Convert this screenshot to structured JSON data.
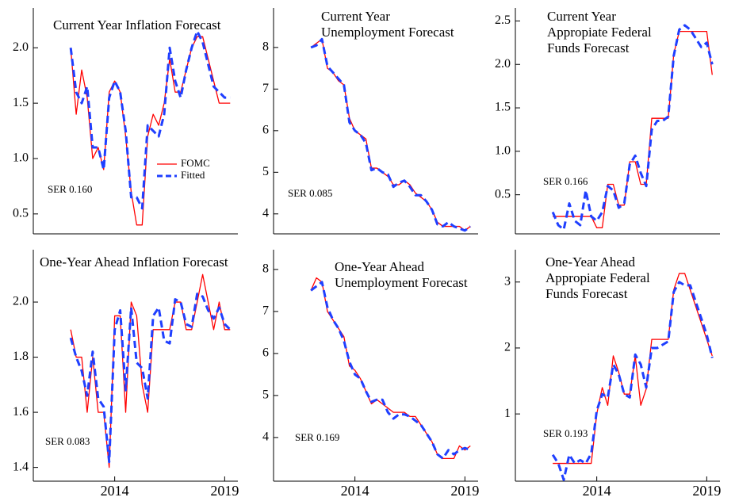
{
  "chart_data": [
    {
      "type": "line",
      "title": [
        "Current Year Inflation Forecast"
      ],
      "annotation": "SER 0.160",
      "legend": "center-right",
      "x": [
        2012,
        2012.25,
        2012.5,
        2012.75,
        2013,
        2013.25,
        2013.5,
        2013.75,
        2014,
        2014.25,
        2014.5,
        2014.75,
        2015,
        2015.25,
        2015.5,
        2015.75,
        2016,
        2016.25,
        2016.5,
        2016.75,
        2017,
        2017.25,
        2017.5,
        2017.75,
        2018,
        2018.25,
        2018.5,
        2018.75,
        2019,
        2019.25
      ],
      "xlim": [
        2010.3,
        2019.6
      ],
      "ylim": [
        0.32,
        2.36
      ],
      "yticks": [
        0.5,
        {
          "value": 1,
          "label": "1.0"
        },
        1.5,
        {
          "value": 2,
          "label": "2.0"
        }
      ],
      "series": [
        {
          "name": "FOMC",
          "color": "#ff0000",
          "values": [
            2.0,
            1.4,
            1.8,
            1.55,
            1.0,
            1.1,
            0.9,
            1.6,
            1.7,
            1.6,
            1.2,
            0.7,
            0.4,
            0.4,
            1.2,
            1.4,
            1.3,
            1.5,
            1.9,
            1.6,
            1.6,
            1.8,
            2.0,
            2.1,
            2.1,
            1.9,
            1.7,
            1.5,
            1.5,
            1.5
          ]
        },
        {
          "name": "Fitted",
          "color": "#1f3fff",
          "dashed": true,
          "values": [
            2.0,
            1.6,
            1.5,
            1.65,
            1.1,
            1.1,
            0.9,
            1.55,
            1.7,
            1.6,
            1.25,
            0.65,
            0.65,
            0.55,
            1.3,
            1.25,
            1.2,
            1.4,
            2.0,
            1.7,
            1.55,
            1.8,
            2.0,
            2.15,
            2.05,
            1.85,
            1.65,
            1.6,
            1.55,
            1.55
          ]
        }
      ]
    },
    {
      "type": "line",
      "title": [
        "Current Year",
        "Unemployment Forecast"
      ],
      "annotation": "SER 0.085",
      "x": [
        2012,
        2012.25,
        2012.5,
        2012.75,
        2013,
        2013.25,
        2013.5,
        2013.75,
        2014,
        2014.25,
        2014.5,
        2014.75,
        2015,
        2015.25,
        2015.5,
        2015.75,
        2016,
        2016.25,
        2016.5,
        2016.75,
        2017,
        2017.25,
        2017.5,
        2017.75,
        2018,
        2018.25,
        2018.5,
        2018.75,
        2019,
        2019.25
      ],
      "xlim": [
        2010.3,
        2019.6
      ],
      "ylim": [
        3.52,
        8.95
      ],
      "yticks": [
        4,
        5,
        6,
        7,
        8
      ],
      "series": [
        {
          "color": "#ff0000",
          "values": [
            8.0,
            8.1,
            8.2,
            7.5,
            7.4,
            7.2,
            7.1,
            6.3,
            6.0,
            5.9,
            5.8,
            5.1,
            5.1,
            5.0,
            4.9,
            4.7,
            4.7,
            4.8,
            4.7,
            4.5,
            4.4,
            4.3,
            4.1,
            3.8,
            3.7,
            3.7,
            3.7,
            3.7,
            3.6,
            3.7
          ]
        },
        {
          "color": "#1f3fff",
          "dashed": true,
          "values": [
            8.0,
            8.05,
            8.2,
            7.55,
            7.4,
            7.25,
            7.1,
            6.2,
            6.0,
            5.9,
            5.7,
            5.05,
            5.1,
            5.0,
            4.95,
            4.65,
            4.75,
            4.8,
            4.65,
            4.45,
            4.45,
            4.3,
            4.1,
            3.75,
            3.7,
            3.8,
            3.7,
            3.65,
            3.6,
            3.7
          ]
        }
      ]
    },
    {
      "type": "line",
      "title": [
        "Current Year",
        "Appropiate Federal",
        "Funds Forecast"
      ],
      "annotation": "SER 0.166",
      "x": [
        2012,
        2012.25,
        2012.5,
        2012.75,
        2013,
        2013.25,
        2013.5,
        2013.75,
        2014,
        2014.25,
        2014.5,
        2014.75,
        2015,
        2015.25,
        2015.5,
        2015.75,
        2016,
        2016.25,
        2016.5,
        2016.75,
        2017,
        2017.25,
        2017.5,
        2017.75,
        2018,
        2018.25,
        2018.5,
        2018.75,
        2019,
        2019.25
      ],
      "xlim": [
        2010.3,
        2019.6
      ],
      "ylim": [
        0.05,
        2.65
      ],
      "yticks": [
        0.5,
        {
          "value": 1,
          "label": "1.0"
        },
        1.5,
        {
          "value": 2,
          "label": "2.0"
        },
        2.5
      ],
      "series": [
        {
          "color": "#ff0000",
          "values": [
            0.25,
            0.25,
            0.25,
            0.25,
            0.25,
            0.25,
            0.25,
            0.25,
            0.12,
            0.12,
            0.62,
            0.62,
            0.38,
            0.38,
            0.88,
            0.88,
            0.62,
            0.62,
            1.38,
            1.38,
            1.38,
            1.38,
            2.12,
            2.38,
            2.38,
            2.38,
            2.38,
            2.38,
            2.38,
            1.88
          ]
        },
        {
          "color": "#1f3fff",
          "dashed": true,
          "values": [
            0.3,
            0.15,
            0.1,
            0.4,
            0.2,
            0.15,
            0.55,
            0.25,
            0.2,
            0.3,
            0.6,
            0.55,
            0.35,
            0.4,
            0.85,
            0.95,
            0.75,
            0.6,
            1.25,
            1.35,
            1.35,
            1.4,
            2.1,
            2.4,
            2.45,
            2.4,
            2.3,
            2.2,
            2.25,
            2.0
          ]
        }
      ]
    },
    {
      "type": "line",
      "title": [
        "One-Year Ahead Inflation Forecast"
      ],
      "annotation": "SER 0.083",
      "x": [
        2012,
        2012.25,
        2012.5,
        2012.75,
        2013,
        2013.25,
        2013.5,
        2013.75,
        2014,
        2014.25,
        2014.5,
        2014.75,
        2015,
        2015.25,
        2015.5,
        2015.75,
        2016,
        2016.25,
        2016.5,
        2016.75,
        2017,
        2017.25,
        2017.5,
        2017.75,
        2018,
        2018.25,
        2018.5,
        2018.75,
        2019,
        2019.25
      ],
      "xlim": [
        2010.3,
        2019.6
      ],
      "xticks": [
        2014,
        2019
      ],
      "ylim": [
        1.35,
        2.19
      ],
      "yticks": [
        1.4,
        1.6,
        1.8,
        {
          "value": 2,
          "label": "2.0"
        }
      ],
      "series": [
        {
          "color": "#ff0000",
          "values": [
            1.9,
            1.8,
            1.8,
            1.6,
            1.8,
            1.6,
            1.6,
            1.4,
            1.95,
            1.95,
            1.6,
            2.0,
            1.95,
            1.7,
            1.6,
            1.9,
            1.9,
            1.9,
            1.9,
            2.0,
            2.0,
            1.9,
            1.9,
            2.0,
            2.1,
            2.0,
            1.9,
            2.0,
            1.9,
            1.9
          ]
        },
        {
          "color": "#1f3fff",
          "dashed": true,
          "values": [
            1.87,
            1.8,
            1.75,
            1.66,
            1.82,
            1.65,
            1.62,
            1.42,
            1.9,
            1.97,
            1.68,
            1.98,
            1.78,
            1.76,
            1.65,
            1.95,
            1.98,
            1.86,
            1.85,
            2.01,
            2.0,
            1.92,
            1.91,
            2.03,
            2.02,
            1.97,
            1.94,
            1.98,
            1.92,
            1.9
          ]
        }
      ]
    },
    {
      "type": "line",
      "title": [
        "One-Year Ahead",
        "Unemployment Forecast"
      ],
      "annotation": "SER 0.169",
      "x": [
        2012,
        2012.25,
        2012.5,
        2012.75,
        2013,
        2013.25,
        2013.5,
        2013.75,
        2014,
        2014.25,
        2014.5,
        2014.75,
        2015,
        2015.25,
        2015.5,
        2015.75,
        2016,
        2016.25,
        2016.5,
        2016.75,
        2017,
        2017.25,
        2017.5,
        2017.75,
        2018,
        2018.25,
        2018.5,
        2018.75,
        2019,
        2019.25
      ],
      "xlim": [
        2010.3,
        2019.6
      ],
      "xticks": [
        2014,
        2019
      ],
      "ylim": [
        2.96,
        8.47
      ],
      "yticks": [
        4,
        5,
        6,
        7,
        8
      ],
      "series": [
        {
          "color": "#ff0000",
          "values": [
            7.5,
            7.8,
            7.7,
            7.0,
            6.8,
            6.6,
            6.4,
            5.7,
            5.6,
            5.4,
            5.1,
            4.8,
            4.9,
            4.8,
            4.7,
            4.6,
            4.6,
            4.6,
            4.5,
            4.5,
            4.3,
            4.1,
            3.9,
            3.6,
            3.5,
            3.5,
            3.5,
            3.8,
            3.7,
            3.8
          ]
        },
        {
          "color": "#1f3fff",
          "dashed": true,
          "values": [
            7.5,
            7.6,
            7.7,
            7.1,
            6.8,
            6.6,
            6.3,
            5.8,
            5.5,
            5.4,
            5.1,
            4.85,
            4.9,
            4.9,
            4.6,
            4.45,
            4.55,
            4.55,
            4.5,
            4.4,
            4.3,
            4.1,
            3.9,
            3.6,
            3.5,
            3.7,
            3.6,
            3.7,
            3.75,
            3.7
          ]
        }
      ]
    },
    {
      "type": "line",
      "title": [
        "One-Year Ahead",
        "Appropiate Federal",
        "Funds Forecast"
      ],
      "annotation": "SER 0.193",
      "x": [
        2012,
        2012.25,
        2012.5,
        2012.75,
        2013,
        2013.25,
        2013.5,
        2013.75,
        2014,
        2014.25,
        2014.5,
        2014.75,
        2015,
        2015.25,
        2015.5,
        2015.75,
        2016,
        2016.25,
        2016.5,
        2016.75,
        2017,
        2017.25,
        2017.5,
        2017.75,
        2018,
        2018.25,
        2018.5,
        2018.75,
        2019,
        2019.25
      ],
      "xlim": [
        2010.3,
        2019.6
      ],
      "xticks": [
        2014,
        2019
      ],
      "ylim": [
        -0.02,
        3.49
      ],
      "yticks": [
        1,
        2,
        3
      ],
      "series": [
        {
          "color": "#ff0000",
          "values": [
            0.25,
            0.25,
            0.25,
            0.25,
            0.25,
            0.25,
            0.25,
            0.25,
            1.0,
            1.4,
            1.13,
            1.88,
            1.63,
            1.3,
            1.3,
            1.88,
            1.13,
            1.38,
            2.13,
            2.13,
            2.13,
            2.13,
            2.88,
            3.13,
            3.13,
            2.88,
            2.63,
            2.38,
            2.13,
            1.88
          ]
        },
        {
          "color": "#1f3fff",
          "dashed": true,
          "values": [
            0.38,
            0.25,
            0.0,
            0.38,
            0.25,
            0.3,
            0.25,
            0.4,
            1.05,
            1.3,
            1.25,
            1.75,
            1.6,
            1.3,
            1.25,
            1.9,
            1.75,
            1.4,
            2.0,
            2.0,
            2.05,
            2.1,
            2.85,
            3.0,
            2.95,
            2.95,
            2.7,
            2.45,
            2.2,
            1.85
          ]
        }
      ]
    }
  ]
}
